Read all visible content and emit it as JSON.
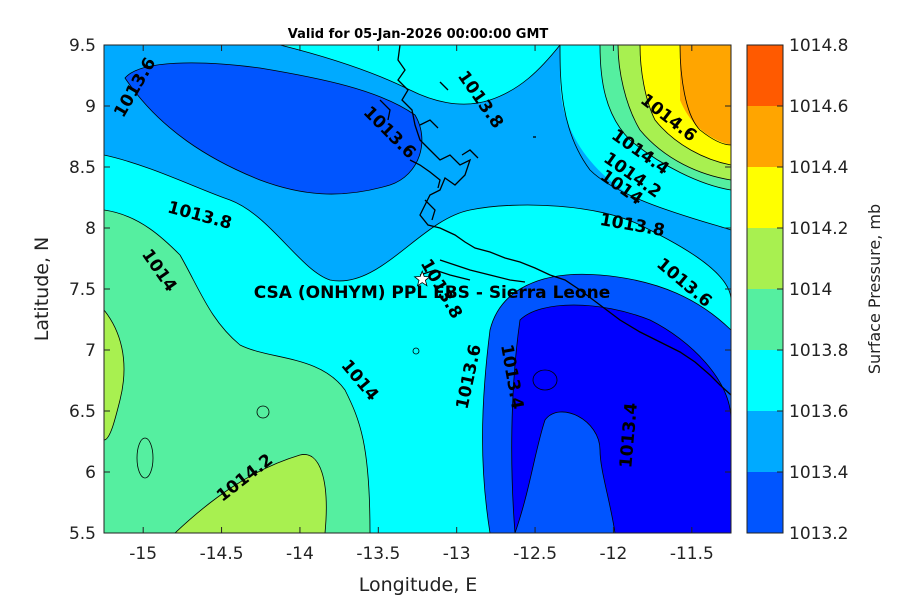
{
  "map": {
    "title": "Valid for 05-Jan-2026 00:00:00 GMT",
    "xlabel": "Longitude, E",
    "ylabel": "Latitude, N",
    "site_label": "CSA (ONHYM) PPL EBS  - Sierra Leone",
    "site_marker": {
      "lon": -13.22,
      "lat": 7.58
    },
    "xlim": [
      -15.25,
      -11.25
    ],
    "ylim": [
      5.5,
      9.5
    ],
    "x_ticks": [
      {
        "value": -15,
        "label": "-15"
      },
      {
        "value": -14.5,
        "label": "-14.5"
      },
      {
        "value": -14,
        "label": "-14"
      },
      {
        "value": -13.5,
        "label": "-13.5"
      },
      {
        "value": -13,
        "label": "-13"
      },
      {
        "value": -12.5,
        "label": "-12.5"
      },
      {
        "value": -12,
        "label": "-12"
      },
      {
        "value": -11.5,
        "label": "-11.5"
      }
    ],
    "y_ticks": [
      {
        "value": 5.5,
        "label": "5.5"
      },
      {
        "value": 6,
        "label": "6"
      },
      {
        "value": 6.5,
        "label": "6.5"
      },
      {
        "value": 7,
        "label": "7"
      },
      {
        "value": 7.5,
        "label": "7.5"
      },
      {
        "value": 8,
        "label": "8"
      },
      {
        "value": 8.5,
        "label": "8.5"
      },
      {
        "value": 9,
        "label": "9"
      },
      {
        "value": 9.5,
        "label": "9.5"
      }
    ],
    "contour_labels": [
      {
        "text": "1013.6",
        "lon": -15.05,
        "lat": 9.15,
        "angle": -60
      },
      {
        "text": "1013.6",
        "lon": -13.43,
        "lat": 8.78,
        "angle": 45
      },
      {
        "text": "1013.8",
        "lon": -12.85,
        "lat": 9.05,
        "angle": 55
      },
      {
        "text": "1014.6",
        "lon": -11.65,
        "lat": 8.9,
        "angle": 38
      },
      {
        "text": "1014.4",
        "lon": -11.83,
        "lat": 8.62,
        "angle": 35
      },
      {
        "text": "1014.2",
        "lon": -11.88,
        "lat": 8.43,
        "angle": 35
      },
      {
        "text": "1014",
        "lon": -11.95,
        "lat": 8.33,
        "angle": 35
      },
      {
        "text": "1013.8",
        "lon": -14.64,
        "lat": 8.1,
        "angle": 15
      },
      {
        "text": "1013.8",
        "lon": -11.88,
        "lat": 8.02,
        "angle": 10
      },
      {
        "text": "1014",
        "lon": -14.9,
        "lat": 7.65,
        "angle": 55
      },
      {
        "text": "1013.6",
        "lon": -11.55,
        "lat": 7.55,
        "angle": 40
      },
      {
        "text": "1013.8",
        "lon": -13.1,
        "lat": 7.5,
        "angle": 60
      },
      {
        "text": "1013.6",
        "lon": -12.92,
        "lat": 6.78,
        "angle": -78
      },
      {
        "text": "1013.4",
        "lon": -12.65,
        "lat": 6.78,
        "angle": 80
      },
      {
        "text": "1014",
        "lon": -13.62,
        "lat": 6.75,
        "angle": 50
      },
      {
        "text": "1013.4",
        "lon": -11.9,
        "lat": 6.3,
        "angle": -85
      },
      {
        "text": "1014.2",
        "lon": -14.35,
        "lat": 5.95,
        "angle": -38
      }
    ]
  },
  "colorbar": {
    "label": "Surface Pressure, mb",
    "levels": [
      {
        "label": "1014.8",
        "color": "#ff5a00"
      },
      {
        "label": "1014.6",
        "color": "#ffa500"
      },
      {
        "label": "1014.4",
        "color": "#ffff00"
      },
      {
        "label": "1014.2",
        "color": "#a8f050"
      },
      {
        "label": "1014",
        "color": "#55efa0"
      },
      {
        "label": "1013.8",
        "color": "#00ffff"
      },
      {
        "label": "1013.6",
        "color": "#00aaff"
      },
      {
        "label": "1013.4",
        "color": "#0055ff"
      },
      {
        "label": "1013.2",
        "color": "#0000ff"
      }
    ]
  },
  "colors": {
    "c13_2": "#0000ff",
    "c13_4": "#0055ff",
    "c13_6": "#00aaff",
    "c13_8": "#00ffff",
    "c14_0": "#55efa0",
    "c14_2": "#a8f050",
    "c14_4": "#ffff00",
    "c14_6": "#ffa500"
  }
}
